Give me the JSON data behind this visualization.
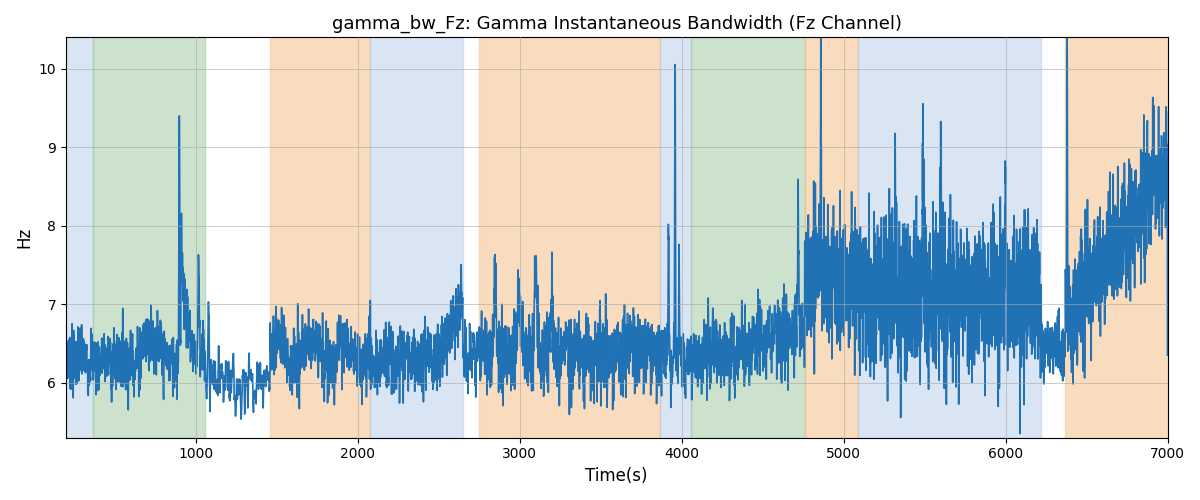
{
  "title": "gamma_bw_Fz: Gamma Instantaneous Bandwidth (Fz Channel)",
  "xlabel": "Time(s)",
  "ylabel": "Hz",
  "xlim": [
    200,
    7000
  ],
  "ylim": [
    5.3,
    10.4
  ],
  "yticks": [
    6,
    7,
    8,
    9,
    10
  ],
  "xticks": [
    1000,
    2000,
    3000,
    4000,
    5000,
    6000,
    7000
  ],
  "line_color": "#2171b5",
  "line_width": 1.2,
  "background_color": "#ffffff",
  "grid_color": "#aaaaaa",
  "title_fontsize": 13,
  "axis_fontsize": 12,
  "bands": [
    {
      "xmin": 200,
      "xmax": 370,
      "color": "#aec6e8",
      "alpha": 0.45
    },
    {
      "xmin": 370,
      "xmax": 1060,
      "color": "#90c090",
      "alpha": 0.45
    },
    {
      "xmin": 1460,
      "xmax": 2080,
      "color": "#f5c08a",
      "alpha": 0.55
    },
    {
      "xmin": 2080,
      "xmax": 2650,
      "color": "#aec6e8",
      "alpha": 0.45
    },
    {
      "xmin": 2750,
      "xmax": 3870,
      "color": "#f5c08a",
      "alpha": 0.55
    },
    {
      "xmin": 3870,
      "xmax": 4060,
      "color": "#aec6e8",
      "alpha": 0.45
    },
    {
      "xmin": 4060,
      "xmax": 4760,
      "color": "#90c090",
      "alpha": 0.45
    },
    {
      "xmin": 4760,
      "xmax": 5090,
      "color": "#f5c08a",
      "alpha": 0.55
    },
    {
      "xmin": 5090,
      "xmax": 6220,
      "color": "#aec6e8",
      "alpha": 0.45
    },
    {
      "xmin": 6370,
      "xmax": 7100,
      "color": "#f5c08a",
      "alpha": 0.55
    }
  ]
}
